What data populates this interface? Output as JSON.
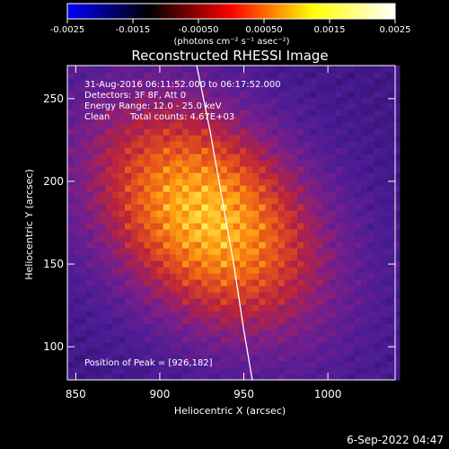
{
  "chart_data": {
    "type": "heatmap",
    "title": "Reconstructed RHESSI Image",
    "xlabel": "Heliocentric X (arcsec)",
    "ylabel": "Heliocentric Y (arcsec)",
    "xlim": [
      845,
      1040
    ],
    "ylim": [
      80,
      270
    ],
    "x_ticks": [
      "850",
      "900",
      "950",
      "1000"
    ],
    "x_tick_values": [
      850,
      900,
      950,
      1000
    ],
    "y_ticks": [
      "100",
      "150",
      "200",
      "250"
    ],
    "y_tick_values": [
      100,
      150,
      200,
      250
    ],
    "colorbar": {
      "range": [
        -0.0025,
        0.0025
      ],
      "ticks": [
        "-0.0025",
        "-0.0015",
        "-0.00050",
        "0.00050",
        "0.0015",
        "0.0025"
      ],
      "tick_values": [
        -0.0025,
        -0.0015,
        -0.0005,
        0.0005,
        0.0015,
        0.0025
      ],
      "unit_label": "(photons cm⁻² s⁻¹ asec⁻²)",
      "colors": [
        "#0000ff",
        "#000000",
        "#ff0000",
        "#ffff00",
        "#ffffff"
      ]
    },
    "annotations": [
      "31-Aug-2016 06:11:52.000 to 06:17:52.000",
      "Detectors: 3F 8F, Att 0",
      "Energy Range: 12.0 - 25.0 keV",
      "Clean",
      "Total counts: 4.67E+03"
    ],
    "peak_label": "Position of Peak = [926,182]",
    "peak": [
      926,
      182
    ],
    "limb_curve": [
      [
        922,
        270
      ],
      [
        930,
        230
      ],
      [
        937,
        190
      ],
      [
        944,
        150
      ],
      [
        950,
        110
      ],
      [
        955,
        80
      ]
    ],
    "image_palette": [
      "#2a0d5c",
      "#4a1c96",
      "#7a1f8a",
      "#b8233c",
      "#e8551a",
      "#ffa010",
      "#fff05a"
    ]
  },
  "date_stamp": "6-Sep-2022 04:47"
}
